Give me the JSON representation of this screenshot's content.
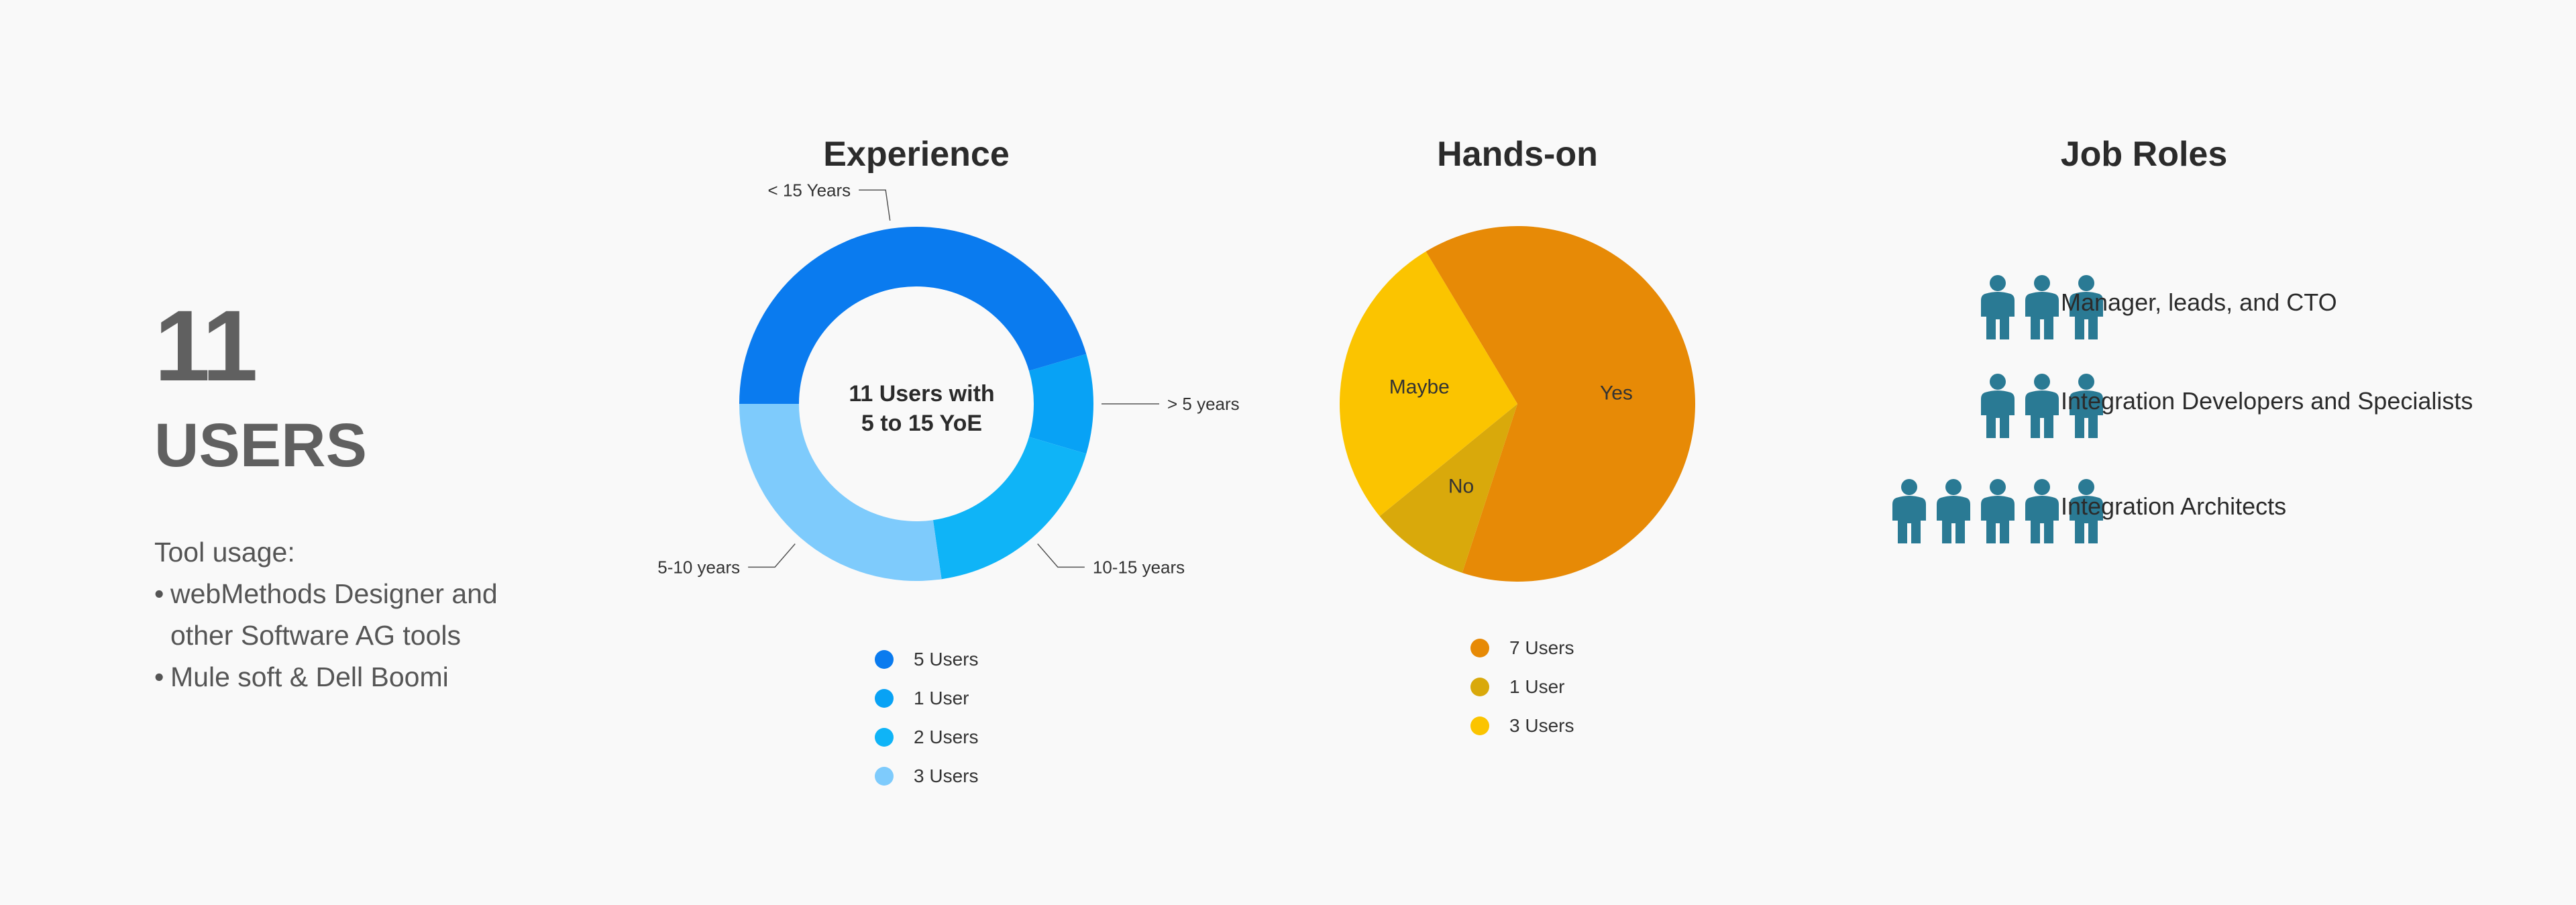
{
  "summary": {
    "count": "11",
    "label": "USERS",
    "tool_title": "Tool usage:",
    "tools": [
      {
        "lines": [
          "webMethods Designer and",
          "other Software AG tools"
        ]
      },
      {
        "lines": [
          "Mule soft & Dell Boomi"
        ]
      }
    ]
  },
  "chart_data": [
    {
      "type": "donut",
      "title": "Experience",
      "center_text": [
        "11 Users with",
        "5 to 15 YoE"
      ],
      "categories": [
        "< 15 Years",
        "> 5 years",
        "10-15 years",
        "5-10 years"
      ],
      "values": [
        5,
        1,
        2,
        3
      ],
      "colors": [
        "#0a7bef",
        "#08a2f5",
        "#0fb4f7",
        "#7ecbfc"
      ],
      "legend": [
        "5 Users",
        "1 User",
        "2 Users",
        "3 Users"
      ]
    },
    {
      "type": "pie",
      "title": "Hands-on",
      "categories": [
        "Yes",
        "No",
        "Maybe"
      ],
      "values": [
        7,
        1,
        3
      ],
      "colors": [
        "#e78a06",
        "#d9a90b",
        "#fbc400"
      ],
      "legend": [
        "7 Users",
        "1 User",
        "3 Users"
      ]
    }
  ],
  "job_roles": {
    "title": "Job Roles",
    "icon_color": "#2a7a94",
    "roles": [
      {
        "label": "Manager, leads, and CTO",
        "count": 3
      },
      {
        "label": "Integration Developers and Specialists",
        "count": 3
      },
      {
        "label": "Integration Architects",
        "count": 5
      }
    ]
  }
}
